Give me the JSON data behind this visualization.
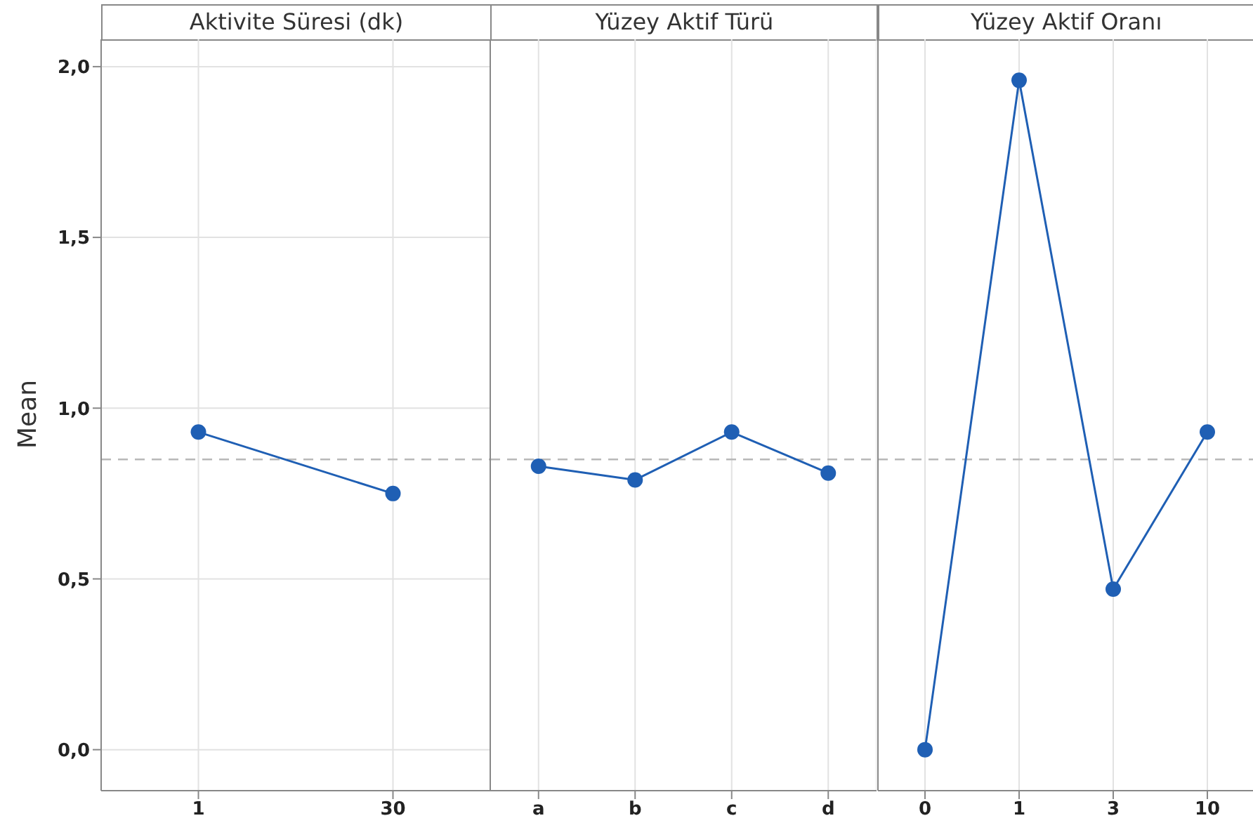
{
  "chart_data": [
    {
      "type": "line",
      "title": "Aktivite Süresi (dk)",
      "ylabel": "Mean",
      "categories": [
        "1",
        "30"
      ],
      "series": [
        {
          "color": "#1f5fb4",
          "values": [
            0.93,
            0.75
          ]
        }
      ],
      "ylim": [
        -0.12,
        2.08
      ],
      "yticks": [
        {
          "value": 0,
          "label": "0,0"
        },
        {
          "value": 0.5,
          "label": "0,5"
        },
        {
          "value": 1,
          "label": "1,0"
        },
        {
          "value": 1.5,
          "label": "1,5"
        },
        {
          "value": 2,
          "label": "2,0"
        }
      ],
      "grid": true,
      "marker": "circle",
      "ref_lines": [
        {
          "axis": "y",
          "value": 0.85,
          "color": "#b8b8b8",
          "line_style": "dashed"
        }
      ]
    },
    {
      "type": "line",
      "title": "Yüzey Aktif Türü",
      "categories": [
        "a",
        "b",
        "c",
        "d"
      ],
      "series": [
        {
          "color": "#1f5fb4",
          "values": [
            0.83,
            0.79,
            0.93,
            0.81
          ]
        }
      ],
      "ylim": [
        -0.12,
        2.08
      ],
      "yticks": [
        {
          "value": 0,
          "label": null
        },
        {
          "value": 0.5,
          "label": null
        },
        {
          "value": 1,
          "label": null
        },
        {
          "value": 1.5,
          "label": null
        },
        {
          "value": 2,
          "label": null
        }
      ],
      "tick_labels": "x",
      "grid": true,
      "marker": "circle",
      "ref_lines": [
        {
          "axis": "y",
          "value": 0.85,
          "color": "#b8b8b8",
          "line_style": "dashed"
        }
      ]
    },
    {
      "type": "line",
      "title": "Yüzey Aktif Oranı",
      "categories": [
        "0",
        "1",
        "3",
        "10"
      ],
      "series": [
        {
          "color": "#1f5fb4",
          "values": [
            0.0,
            1.96,
            0.47,
            0.93
          ]
        }
      ],
      "ylim": [
        -0.12,
        2.08
      ],
      "yticks": [
        {
          "value": 0,
          "label": null
        },
        {
          "value": 0.5,
          "label": null
        },
        {
          "value": 1,
          "label": null
        },
        {
          "value": 1.5,
          "label": null
        },
        {
          "value": 2,
          "label": null
        }
      ],
      "tick_labels": "x",
      "grid": true,
      "marker": "circle",
      "ref_lines": [
        {
          "axis": "y",
          "value": 0.85,
          "color": "#b8b8b8",
          "line_style": "dashed"
        }
      ]
    }
  ]
}
